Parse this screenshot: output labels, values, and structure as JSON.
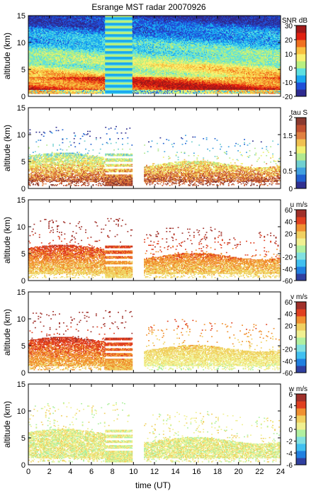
{
  "title": "Esrange MST radar 20070926",
  "xlabel": "time (UT)",
  "colors": {
    "colormap": [
      "#2e2a8f",
      "#2050d8",
      "#1aa8f0",
      "#5ce0e0",
      "#b8f080",
      "#f8f070",
      "#f8c040",
      "#f07020",
      "#e02010",
      "#a01818"
    ],
    "sparse_colormap": [
      "#3040a0",
      "#2080e0",
      "#40c0f0",
      "#80e0e0",
      "#b0f0a0",
      "#f0f090",
      "#f0d060",
      "#f09030",
      "#e04020",
      "#a0302a"
    ],
    "tau_colormap": [
      "#303090",
      "#2060d0",
      "#40a0e0",
      "#70d0d0",
      "#b0e890",
      "#f0f070",
      "#f0c050",
      "#e08040",
      "#c05030",
      "#8a3a30"
    ]
  },
  "chart_data": [
    {
      "type": "heatmap",
      "title": "Esrange MST radar 20070926",
      "ylabel": "altitude (km)",
      "xlim": [
        0,
        24
      ],
      "ylim": [
        0,
        15
      ],
      "xticks": [
        0,
        2,
        4,
        6,
        8,
        10,
        12,
        14,
        16,
        18,
        20,
        22,
        24
      ],
      "yticks": [
        0,
        5,
        10,
        15
      ],
      "colorbar": {
        "label": "SNR dB",
        "range": [
          -20,
          30
        ],
        "ticks": [
          -20,
          -10,
          0,
          10,
          20,
          30
        ]
      }
    },
    {
      "type": "heatmap",
      "ylabel": "altitude (km)",
      "xlim": [
        0,
        24
      ],
      "ylim": [
        0,
        15
      ],
      "xticks": [
        0,
        2,
        4,
        6,
        8,
        10,
        12,
        14,
        16,
        18,
        20,
        22,
        24
      ],
      "yticks": [
        0,
        5,
        10,
        15
      ],
      "colorbar": {
        "label": "tau S",
        "range": [
          0,
          2
        ],
        "ticks": [
          0,
          0.5,
          1,
          1.5,
          2
        ]
      }
    },
    {
      "type": "heatmap",
      "ylabel": "altitude (km)",
      "xlim": [
        0,
        24
      ],
      "ylim": [
        0,
        15
      ],
      "xticks": [
        0,
        2,
        4,
        6,
        8,
        10,
        12,
        14,
        16,
        18,
        20,
        22,
        24
      ],
      "yticks": [
        0,
        5,
        10,
        15
      ],
      "colorbar": {
        "label": "u m/s",
        "range": [
          -60,
          60
        ],
        "ticks": [
          -60,
          -40,
          -20,
          0,
          20,
          40,
          60
        ]
      }
    },
    {
      "type": "heatmap",
      "ylabel": "altitude (km)",
      "xlim": [
        0,
        24
      ],
      "ylim": [
        0,
        15
      ],
      "xticks": [
        0,
        2,
        4,
        6,
        8,
        10,
        12,
        14,
        16,
        18,
        20,
        22,
        24
      ],
      "yticks": [
        0,
        5,
        10,
        15
      ],
      "colorbar": {
        "label": "v m/s",
        "range": [
          -60,
          60
        ],
        "ticks": [
          -60,
          -40,
          -20,
          0,
          20,
          40,
          60
        ]
      }
    },
    {
      "type": "heatmap",
      "ylabel": "altitude (km)",
      "xlabel": "time (UT)",
      "xlim": [
        0,
        24
      ],
      "ylim": [
        0,
        15
      ],
      "xticks": [
        0,
        2,
        4,
        6,
        8,
        10,
        12,
        14,
        16,
        18,
        20,
        22,
        24
      ],
      "yticks": [
        0,
        5,
        10,
        15
      ],
      "colorbar": {
        "label": "w m/s",
        "range": [
          -6,
          6
        ],
        "ticks": [
          -6,
          -4,
          -2,
          0,
          2,
          4,
          6
        ]
      }
    }
  ]
}
